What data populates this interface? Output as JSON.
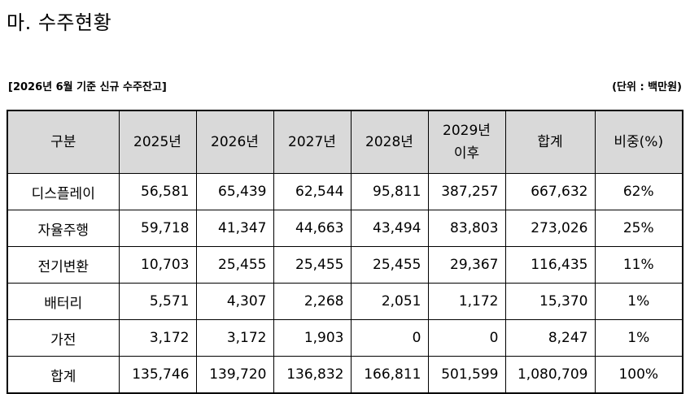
{
  "title": "마. 수주현황",
  "caption_left": "[2026년 6월 기준 신규 수주잔고]",
  "caption_right": "(단위 : 백만원)",
  "table": {
    "headers": [
      "구분",
      "2025년",
      "2026년",
      "2027년",
      "2028년",
      "2029년 이후",
      "합계",
      "비중(%)"
    ],
    "rows": [
      {
        "label": "디스플레이",
        "values": [
          "56,581",
          "65,439",
          "62,544",
          "95,811",
          "387,257",
          "667,632"
        ],
        "share": "62%"
      },
      {
        "label": "자율주행",
        "values": [
          "59,718",
          "41,347",
          "44,663",
          "43,494",
          "83,803",
          "273,026"
        ],
        "share": "25%"
      },
      {
        "label": "전기변환",
        "values": [
          "10,703",
          "25,455",
          "25,455",
          "25,455",
          "29,367",
          "116,435"
        ],
        "share": "11%"
      },
      {
        "label": "배터리",
        "values": [
          "5,571",
          "4,307",
          "2,268",
          "2,051",
          "1,172",
          "15,370"
        ],
        "share": "1%"
      },
      {
        "label": "가전",
        "values": [
          "3,172",
          "3,172",
          "1,903",
          "0",
          "0",
          "8,247"
        ],
        "share": "1%"
      },
      {
        "label": "합계",
        "values": [
          "135,746",
          "139,720",
          "136,832",
          "166,811",
          "501,599",
          "1,080,709"
        ],
        "share": "100%"
      }
    ]
  }
}
